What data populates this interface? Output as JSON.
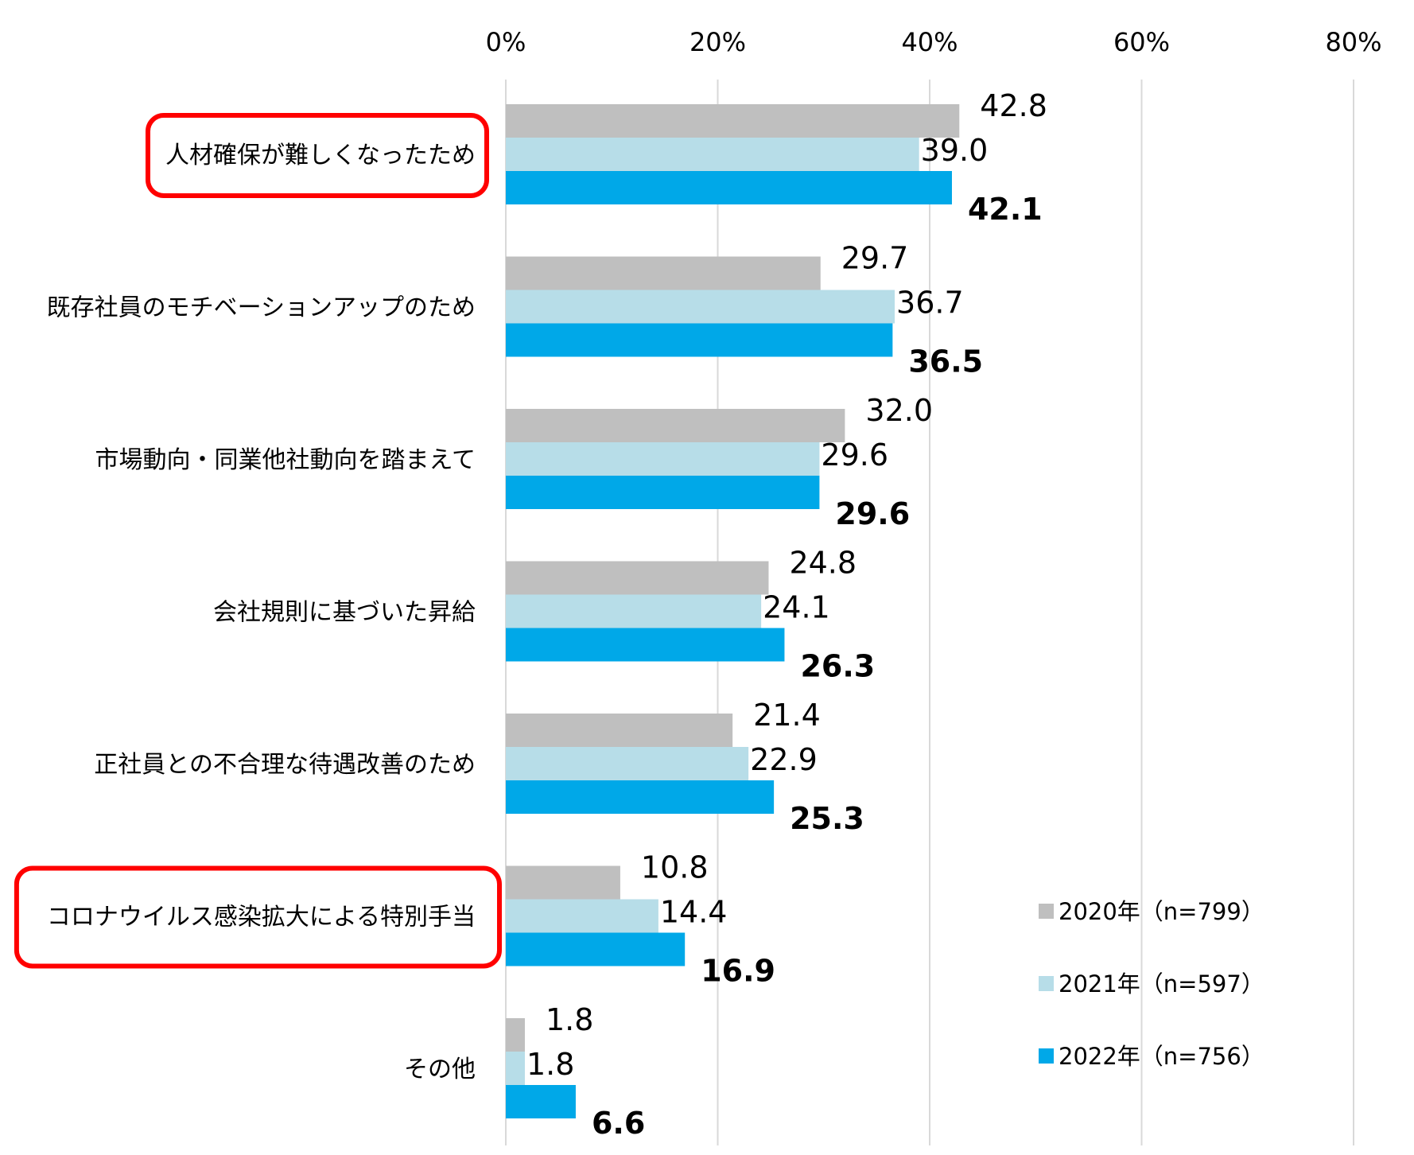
{
  "chart_data": {
    "type": "bar",
    "orientation": "horizontal",
    "categories": [
      "人材確保が難しくなったため",
      "既存社員のモチベーションアップのため",
      "市場動向・同業他社動向を踏まえて",
      "会社規則に基づいた昇給",
      "正社員との不合理な待遇改善のため",
      "コロナウイルス感染拡大による特別手当",
      "その他"
    ],
    "highlighted_categories": [
      0,
      5
    ],
    "highlight_color": "#ff0000",
    "series": [
      {
        "name": "2020年（n=799）",
        "color": "#bfbfbf",
        "values": [
          42.8,
          29.7,
          32.0,
          24.8,
          21.4,
          10.8,
          1.8
        ],
        "labels": [
          "42.8",
          "29.7",
          "32.0",
          "24.8",
          "21.4",
          "10.8",
          "1.8"
        ],
        "bold": false
      },
      {
        "name": "2021年（n=597）",
        "color": "#b7dde8",
        "values": [
          39.0,
          36.7,
          29.6,
          24.1,
          22.9,
          14.4,
          1.8
        ],
        "labels": [
          "39.0",
          "36.7",
          "29.6",
          "24.1",
          "22.9",
          "14.4",
          "1.8"
        ],
        "bold": false
      },
      {
        "name": "2022年（n=756）",
        "color": "#00a8e8",
        "values": [
          42.1,
          36.5,
          29.6,
          26.3,
          25.3,
          16.9,
          6.6
        ],
        "labels": [
          "42.1",
          "36.5",
          "29.6",
          "26.3",
          "25.3",
          "16.9",
          "6.6"
        ],
        "bold": true
      }
    ],
    "xlim": [
      0,
      80
    ],
    "ticks": [
      0,
      20,
      40,
      60,
      80
    ],
    "tick_labels": [
      "0%",
      "20%",
      "40%",
      "60%",
      "80%"
    ],
    "axis_position": "top",
    "grid": true,
    "legend_position": "bottom-right"
  }
}
